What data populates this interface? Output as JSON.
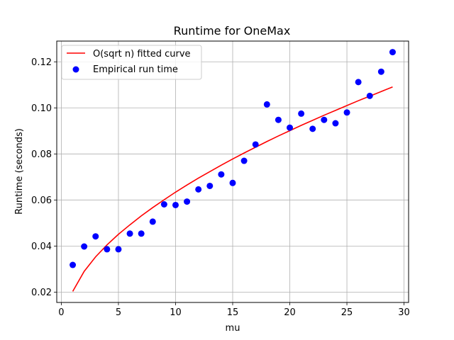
{
  "chart_data": {
    "type": "scatter",
    "title": "Runtime for OneMax",
    "xlabel": "mu",
    "ylabel": "Runtime (seconds)",
    "xlim": [
      -0.4,
      30.4
    ],
    "ylim": [
      0.0155,
      0.129
    ],
    "xticks": [
      0,
      5,
      10,
      15,
      20,
      25,
      30
    ],
    "xtick_labels": [
      "0",
      "5",
      "10",
      "15",
      "20",
      "25",
      "30"
    ],
    "yticks": [
      0.02,
      0.04,
      0.06,
      0.08,
      0.1,
      0.12
    ],
    "ytick_labels": [
      "0.02",
      "0.04",
      "0.06",
      "0.08",
      "0.10",
      "0.12"
    ],
    "grid": true,
    "legend_position": "top-left",
    "series": [
      {
        "name": "O(sqrt n) fitted curve",
        "kind": "line",
        "color": "#ff0000",
        "x": [
          1,
          2,
          3,
          4,
          5,
          6,
          7,
          8,
          9,
          10,
          11,
          12,
          13,
          14,
          15,
          16,
          17,
          18,
          19,
          20,
          21,
          22,
          23,
          24,
          25,
          26,
          27,
          28,
          29
        ],
        "y": [
          0.0203,
          0.029,
          0.0353,
          0.0405,
          0.0451,
          0.0492,
          0.0531,
          0.0567,
          0.0601,
          0.0634,
          0.0665,
          0.0695,
          0.0723,
          0.0751,
          0.0778,
          0.0804,
          0.0829,
          0.0854,
          0.0878,
          0.0901,
          0.0924,
          0.0946,
          0.0968,
          0.0989,
          0.101,
          0.1031,
          0.1051,
          0.1071,
          0.1091
        ]
      },
      {
        "name": "Empirical run time",
        "kind": "scatter",
        "color": "#0000ff",
        "x": [
          1,
          2,
          3,
          4,
          5,
          6,
          7,
          8,
          9,
          10,
          11,
          12,
          13,
          14,
          15,
          16,
          17,
          18,
          19,
          20,
          21,
          22,
          23,
          24,
          25,
          26,
          27,
          28,
          29
        ],
        "y": [
          0.0318,
          0.0398,
          0.0442,
          0.0386,
          0.0386,
          0.0454,
          0.0454,
          0.0506,
          0.0581,
          0.0578,
          0.0593,
          0.0646,
          0.0661,
          0.0711,
          0.0674,
          0.077,
          0.0841,
          0.1015,
          0.0948,
          0.0914,
          0.0975,
          0.0909,
          0.0948,
          0.0933,
          0.098,
          0.1112,
          0.1052,
          0.1157,
          0.1242
        ]
      }
    ]
  }
}
